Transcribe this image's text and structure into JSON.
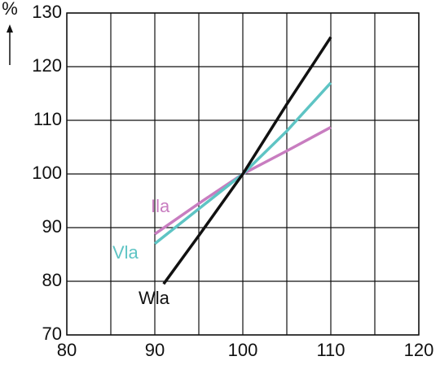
{
  "chart_data": {
    "type": "line",
    "y_label": "%",
    "xlim": [
      80,
      120
    ],
    "xticks": [
      80,
      90,
      100,
      110,
      120
    ],
    "xminor": [
      85,
      95,
      105,
      115
    ],
    "ylim": [
      70,
      130
    ],
    "yticks": [
      70,
      80,
      90,
      100,
      110,
      120,
      130
    ],
    "grid": true,
    "series": [
      {
        "name": "Ila",
        "color": "#c87dc0",
        "x": [
          90,
          95,
          100,
          105,
          110
        ],
        "values": [
          88.8,
          94.5,
          100,
          104.3,
          108.7
        ]
      },
      {
        "name": "Vla",
        "color": "#5ec4c4",
        "x": [
          90,
          95,
          100,
          105,
          110
        ],
        "values": [
          87,
          93.5,
          100,
          108,
          117
        ]
      },
      {
        "name": "Wla",
        "color": "#111111",
        "x": [
          91,
          95,
          100,
          105,
          110
        ],
        "values": [
          79.5,
          88.5,
          100,
          113,
          125.5
        ]
      }
    ]
  }
}
